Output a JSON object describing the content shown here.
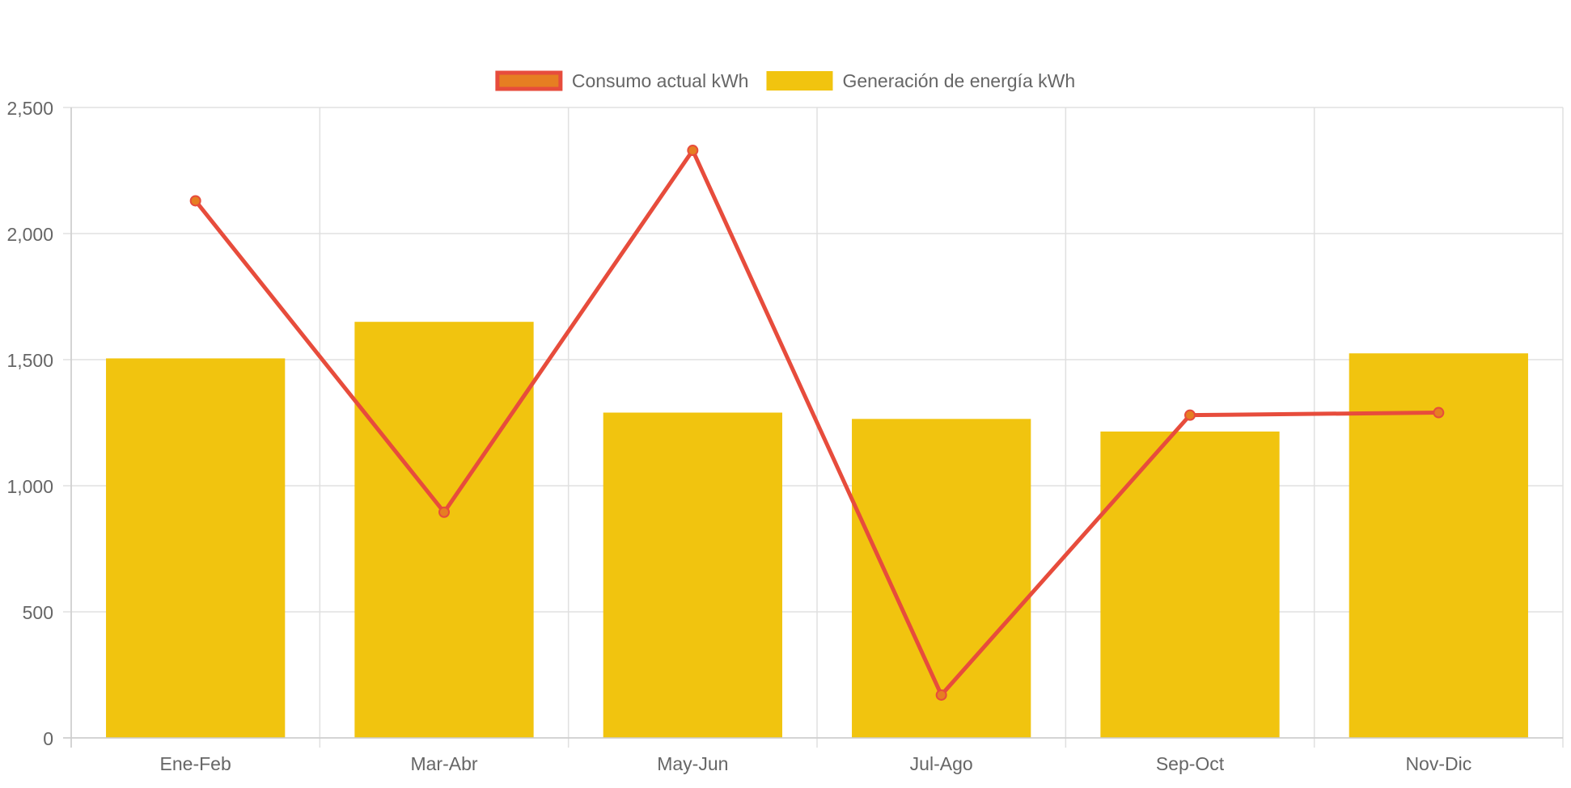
{
  "chart_data": {
    "type": "bar",
    "categories": [
      "Ene-Feb",
      "Mar-Abr",
      "May-Jun",
      "Jul-Ago",
      "Sep-Oct",
      "Nov-Dic"
    ],
    "series": [
      {
        "name": "Consumo actual kWh",
        "type": "line",
        "values": [
          2130,
          895,
          2330,
          170,
          1280,
          1290
        ],
        "line_color": "#e74c3c",
        "point_color": "#e67e22"
      },
      {
        "name": "Generación de energía kWh",
        "type": "bar",
        "values": [
          1505,
          1650,
          1290,
          1265,
          1215,
          1525
        ],
        "color": "#f1c40f"
      }
    ],
    "ylim": [
      0,
      2500
    ],
    "yticks": [
      0,
      500,
      1000,
      1500,
      2000,
      2500
    ],
    "ytick_labels": [
      "0",
      "500",
      "1,000",
      "1,500",
      "2,000",
      "2,500"
    ],
    "grid": true,
    "legend_position": "top-center"
  }
}
